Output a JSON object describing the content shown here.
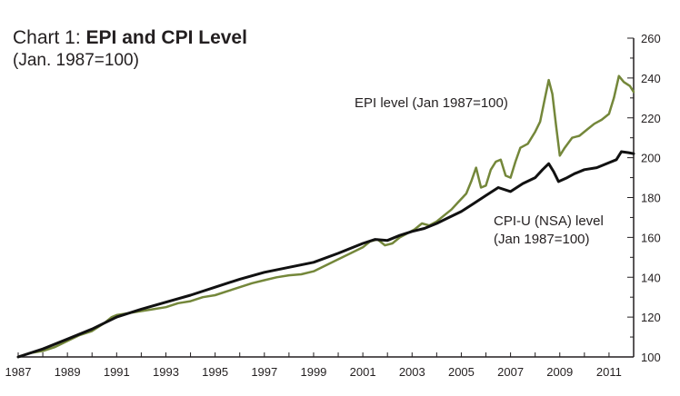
{
  "title": {
    "prefix": "Chart 1: ",
    "bold": "EPI and CPI  Level",
    "subtitle": "(Jan. 1987=100)"
  },
  "colors": {
    "epi": "#74873a",
    "cpi": "#111111",
    "axis": "#231f20"
  },
  "chart_data": {
    "type": "line",
    "title": "Chart 1: EPI and CPI  Level",
    "subtitle": "(Jan. 1987=100)",
    "xlabel": "",
    "ylabel": "",
    "xlim": [
      1987,
      2012
    ],
    "ylim": [
      100,
      260
    ],
    "x_ticks": [
      "1987",
      "1989",
      "1991",
      "1993",
      "1995",
      "1997",
      "1999",
      "2001",
      "2003",
      "2005",
      "2007",
      "2009",
      "2011"
    ],
    "y_ticks": [
      "100",
      "120",
      "140",
      "160",
      "180",
      "200",
      "220",
      "240",
      "260"
    ],
    "y_axis_side": "right",
    "grid": false,
    "annotations": [
      {
        "series": "EPI",
        "lines": [
          "EPI level (Jan 1987=100)"
        ]
      },
      {
        "series": "CPI",
        "lines": [
          "CPI-U (NSA) level",
          "(Jan 1987=100)"
        ]
      }
    ],
    "series": [
      {
        "key": "EPI",
        "color": "#74873a",
        "points": [
          [
            1987.0,
            100
          ],
          [
            1987.5,
            102
          ],
          [
            1988.0,
            103
          ],
          [
            1988.5,
            105
          ],
          [
            1989.0,
            108
          ],
          [
            1989.5,
            111
          ],
          [
            1990.0,
            113
          ],
          [
            1990.5,
            117
          ],
          [
            1990.8,
            120
          ],
          [
            1991.0,
            121
          ],
          [
            1991.5,
            122
          ],
          [
            1992.0,
            123
          ],
          [
            1992.5,
            124
          ],
          [
            1993.0,
            125
          ],
          [
            1993.5,
            127
          ],
          [
            1994.0,
            128
          ],
          [
            1994.5,
            130
          ],
          [
            1995.0,
            131
          ],
          [
            1995.5,
            133
          ],
          [
            1996.0,
            135
          ],
          [
            1996.5,
            137
          ],
          [
            1997.0,
            138.5
          ],
          [
            1997.5,
            140
          ],
          [
            1998.0,
            141
          ],
          [
            1998.5,
            141.5
          ],
          [
            1999.0,
            143
          ],
          [
            1999.5,
            146
          ],
          [
            2000.0,
            149
          ],
          [
            2000.5,
            152
          ],
          [
            2001.0,
            155
          ],
          [
            2001.3,
            158
          ],
          [
            2001.6,
            159
          ],
          [
            2001.9,
            156
          ],
          [
            2002.2,
            157
          ],
          [
            2002.5,
            160
          ],
          [
            2002.8,
            162
          ],
          [
            2003.1,
            164
          ],
          [
            2003.4,
            167
          ],
          [
            2003.7,
            166
          ],
          [
            2004.0,
            168
          ],
          [
            2004.3,
            171
          ],
          [
            2004.6,
            174
          ],
          [
            2004.9,
            178
          ],
          [
            2005.2,
            182
          ],
          [
            2005.4,
            188
          ],
          [
            2005.6,
            195
          ],
          [
            2005.8,
            185
          ],
          [
            2006.0,
            186
          ],
          [
            2006.2,
            194
          ],
          [
            2006.4,
            198
          ],
          [
            2006.6,
            199
          ],
          [
            2006.8,
            191
          ],
          [
            2007.0,
            190
          ],
          [
            2007.2,
            198
          ],
          [
            2007.4,
            205
          ],
          [
            2007.7,
            207
          ],
          [
            2008.0,
            213
          ],
          [
            2008.2,
            218
          ],
          [
            2008.4,
            230
          ],
          [
            2008.55,
            239
          ],
          [
            2008.7,
            232
          ],
          [
            2008.85,
            216
          ],
          [
            2009.0,
            201
          ],
          [
            2009.2,
            205
          ],
          [
            2009.5,
            210
          ],
          [
            2009.8,
            211
          ],
          [
            2010.1,
            214
          ],
          [
            2010.4,
            217
          ],
          [
            2010.7,
            219
          ],
          [
            2011.0,
            222
          ],
          [
            2011.2,
            230
          ],
          [
            2011.4,
            241
          ],
          [
            2011.6,
            238
          ],
          [
            2011.85,
            236
          ],
          [
            2012.0,
            233
          ]
        ]
      },
      {
        "key": "CPI",
        "color": "#111111",
        "points": [
          [
            1987.0,
            100
          ],
          [
            1988.0,
            104
          ],
          [
            1989.0,
            109
          ],
          [
            1990.0,
            114
          ],
          [
            1991.0,
            120
          ],
          [
            1992.0,
            124
          ],
          [
            1993.0,
            127.5
          ],
          [
            1994.0,
            131
          ],
          [
            1995.0,
            135
          ],
          [
            1996.0,
            139
          ],
          [
            1997.0,
            142.5
          ],
          [
            1998.0,
            145
          ],
          [
            1999.0,
            147.5
          ],
          [
            2000.0,
            152
          ],
          [
            2001.0,
            157
          ],
          [
            2001.5,
            159
          ],
          [
            2002.0,
            158.5
          ],
          [
            2002.5,
            161
          ],
          [
            2003.0,
            163
          ],
          [
            2003.5,
            164.5
          ],
          [
            2004.0,
            167
          ],
          [
            2004.5,
            170
          ],
          [
            2005.0,
            173
          ],
          [
            2005.5,
            177
          ],
          [
            2006.0,
            181
          ],
          [
            2006.5,
            185
          ],
          [
            2007.0,
            183
          ],
          [
            2007.5,
            187
          ],
          [
            2008.0,
            190
          ],
          [
            2008.3,
            194
          ],
          [
            2008.55,
            197
          ],
          [
            2008.75,
            193
          ],
          [
            2008.95,
            188
          ],
          [
            2009.3,
            190
          ],
          [
            2009.6,
            192
          ],
          [
            2010.0,
            194
          ],
          [
            2010.5,
            195
          ],
          [
            2011.0,
            197.5
          ],
          [
            2011.3,
            199
          ],
          [
            2011.5,
            203
          ],
          [
            2011.8,
            202.5
          ],
          [
            2012.0,
            202
          ]
        ]
      }
    ]
  }
}
